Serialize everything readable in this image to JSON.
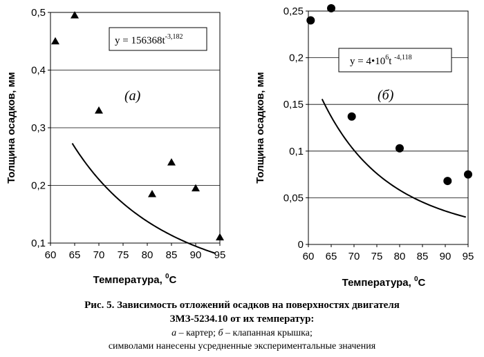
{
  "chart_data": [
    {
      "type": "scatter",
      "panel": "a",
      "panel_label": "(а)",
      "xlabel": "Температура, 0С",
      "xlabel_main": "Температура, ",
      "xlabel_sup": "0",
      "xlabel_unit": "С",
      "ylabel": "Толщина осадков, мм",
      "xlim": [
        60,
        95
      ],
      "ylim": [
        0.1,
        0.5
      ],
      "x_ticks": [
        "60",
        "65",
        "70",
        "75",
        "80",
        "85",
        "90",
        "95"
      ],
      "y_ticks": [
        "0,1",
        "0,2",
        "0,3",
        "0,4",
        "0,5"
      ],
      "marker": "triangle",
      "grid": true,
      "points": [
        {
          "x": 61,
          "y": 0.45
        },
        {
          "x": 65,
          "y": 0.495
        },
        {
          "x": 70,
          "y": 0.33
        },
        {
          "x": 81,
          "y": 0.185
        },
        {
          "x": 85,
          "y": 0.24
        },
        {
          "x": 90,
          "y": 0.195
        },
        {
          "x": 95,
          "y": 0.11
        }
      ],
      "trendline": {
        "a": 156368,
        "b": -3.182,
        "x_from": 64.5,
        "x_to": 94
      },
      "equation_main": "y = 156368t",
      "equation_sup": "-3,182"
    },
    {
      "type": "scatter",
      "panel": "b",
      "panel_label": "(б)",
      "xlabel": "Температура, 0С",
      "xlabel_main": "Температура, ",
      "xlabel_sup": "0",
      "xlabel_unit": "С",
      "ylabel": "Толщина осадков, мм",
      "xlim": [
        60,
        95
      ],
      "ylim": [
        0,
        0.25
      ],
      "x_ticks": [
        "60",
        "65",
        "70",
        "75",
        "80",
        "85",
        "90",
        "95"
      ],
      "y_ticks": [
        "0",
        "0,05",
        "0,1",
        "0,15",
        "0,2",
        "0,25"
      ],
      "marker": "circle",
      "grid": true,
      "points": [
        {
          "x": 60.5,
          "y": 0.24
        },
        {
          "x": 65,
          "y": 0.253
        },
        {
          "x": 69.5,
          "y": 0.137
        },
        {
          "x": 80,
          "y": 0.103
        },
        {
          "x": 90.5,
          "y": 0.068
        },
        {
          "x": 95,
          "y": 0.075
        }
      ],
      "trendline": {
        "a": 4000000,
        "b": -4.118,
        "x_from": 63,
        "x_to": 94.5
      },
      "equation_pre": "y = 4•10",
      "equation_sup1": "6",
      "equation_mid": "t ",
      "equation_sup2": "-4,118"
    }
  ],
  "caption": {
    "line1": "Рис. 5. Зависимость отложений осадков на поверхностях двигателя",
    "line2": "ЗМЗ-5234.10 от их температур:",
    "line3_a": "а",
    "line3_a_text": " – картер; ",
    "line3_b": "б",
    "line3_b_text": " – клапанная крышка;",
    "line4": "символами нанесены усредненные экспериментальные значения"
  },
  "colors": {
    "axis": "#000000",
    "grid": "#000000",
    "marker": "#000000",
    "line": "#000000"
  }
}
